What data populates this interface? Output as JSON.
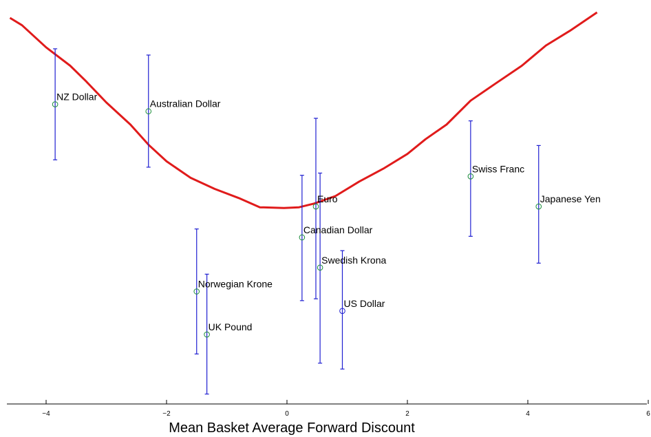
{
  "chart_data": {
    "type": "scatter",
    "title": "",
    "xlabel": "Mean Basket Average Forward Discount",
    "ylabel": "",
    "xlim": [
      -4.6,
      6.0
    ],
    "xticks": [
      -4,
      -2,
      0,
      2,
      4,
      6
    ],
    "xtick_labels": [
      "−4",
      "−2",
      "0",
      "2",
      "4",
      "6"
    ],
    "points": [
      {
        "label": "NZ Dollar",
        "x": -3.85,
        "y": 0.755,
        "err_lo": 0.604,
        "err_hi": 0.906,
        "marker_color": "#1a8c3a"
      },
      {
        "label": "Australian Dollar",
        "x": -2.3,
        "y": 0.736,
        "err_lo": 0.584,
        "err_hi": 0.889,
        "marker_color": "#1a8c3a"
      },
      {
        "label": "Norwegian Krone",
        "x": -1.5,
        "y": 0.246,
        "err_lo": 0.076,
        "err_hi": 0.416,
        "marker_color": "#1a8c3a"
      },
      {
        "label": "UK Pound",
        "x": -1.33,
        "y": 0.129,
        "err_lo": -0.033,
        "err_hi": 0.293,
        "marker_color": "#1a8c3a"
      },
      {
        "label": "Canadian Dollar",
        "x": 0.25,
        "y": 0.393,
        "err_lo": 0.221,
        "err_hi": 0.562,
        "marker_color": "#1a8c3a"
      },
      {
        "label": "Euro",
        "x": 0.48,
        "y": 0.477,
        "err_lo": 0.226,
        "err_hi": 0.717,
        "marker_color": "#1a8c3a"
      },
      {
        "label": "Swedish Krona",
        "x": 0.55,
        "y": 0.311,
        "err_lo": 0.051,
        "err_hi": 0.568,
        "marker_color": "#1a8c3a"
      },
      {
        "label": "US Dollar",
        "x": 0.92,
        "y": 0.193,
        "err_lo": 0.035,
        "err_hi": 0.357,
        "marker_color": "#1f1fd1"
      },
      {
        "label": "Swiss Franc",
        "x": 3.05,
        "y": 0.559,
        "err_lo": 0.396,
        "err_hi": 0.71,
        "marker_color": "#1a8c3a"
      },
      {
        "label": "Japanese Yen",
        "x": 4.18,
        "y": 0.477,
        "err_lo": 0.323,
        "err_hi": 0.643,
        "marker_color": "#1a8c3a"
      }
    ],
    "curve": {
      "color": "#e01b1b",
      "x": [
        -4.6,
        -4.4,
        -4.0,
        -3.6,
        -3.35,
        -3.0,
        -2.6,
        -2.3,
        -2.0,
        -1.6,
        -1.2,
        -0.8,
        -0.45,
        -0.05,
        0.2,
        0.45,
        0.8,
        1.2,
        1.6,
        2.0,
        2.3,
        2.65,
        3.05,
        3.45,
        3.9,
        4.3,
        4.7,
        5.15
      ],
      "y": [
        0.99,
        0.97,
        0.91,
        0.86,
        0.82,
        0.76,
        0.7,
        0.645,
        0.6,
        0.555,
        0.525,
        0.5,
        0.475,
        0.473,
        0.475,
        0.485,
        0.505,
        0.545,
        0.58,
        0.62,
        0.66,
        0.7,
        0.765,
        0.81,
        0.86,
        0.915,
        0.955,
        1.005
      ]
    },
    "ylim": [
      -0.06,
      1.02
    ],
    "grid": false,
    "legend": "none"
  }
}
